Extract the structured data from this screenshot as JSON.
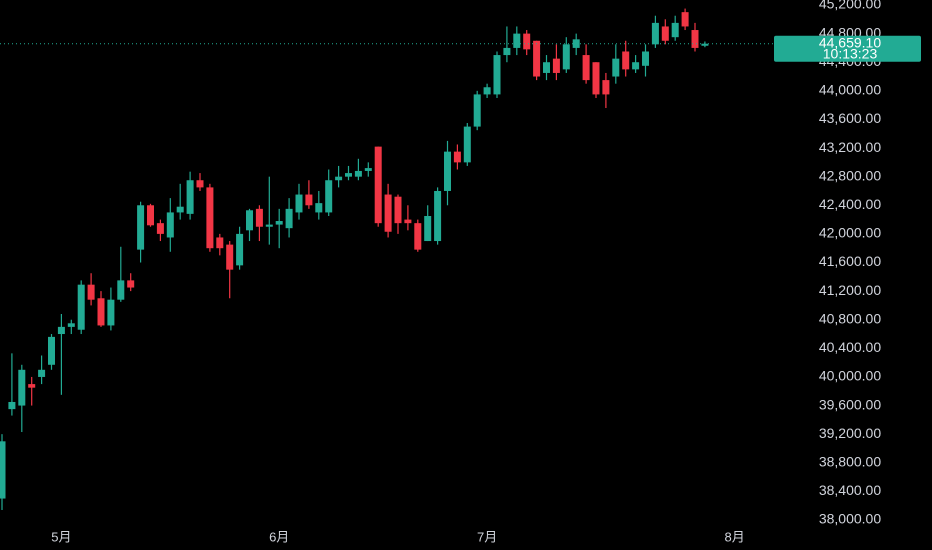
{
  "chart_data": {
    "type": "candlestick",
    "categories": [
      null,
      null,
      null,
      null,
      null,
      null,
      "5月",
      null,
      null,
      null,
      null,
      null,
      null,
      null,
      null,
      null,
      null,
      null,
      null,
      null,
      null,
      null,
      null,
      null,
      null,
      null,
      null,
      null,
      "6月",
      null,
      null,
      null,
      null,
      null,
      null,
      null,
      null,
      null,
      null,
      null,
      null,
      null,
      null,
      null,
      null,
      null,
      null,
      null,
      null,
      "7月",
      null,
      null,
      null,
      null,
      null,
      null,
      null,
      null,
      null,
      null,
      null,
      null,
      null,
      null,
      null,
      null,
      null,
      null,
      null,
      null,
      null,
      null,
      null,
      null,
      "8月"
    ],
    "open": [
      38300,
      39550,
      39600,
      39900,
      40000,
      40170,
      40600,
      40700,
      40660,
      41290,
      41100,
      40720,
      41080,
      41350,
      41780,
      42400,
      42150,
      41950,
      42300,
      42280,
      42750,
      42650,
      41950,
      41850,
      41560,
      42050,
      42350,
      42100,
      42130,
      42080,
      42300,
      42550,
      42300,
      42300,
      42750,
      42800,
      42800,
      42880,
      43220,
      42550,
      42520,
      42200,
      42150,
      41900,
      41900,
      42600,
      43150,
      43000,
      43500,
      43950,
      43950,
      44500,
      44600,
      44800,
      44700,
      44250,
      44450,
      44300,
      44600,
      44500,
      44400,
      44150,
      44200,
      44550,
      44300,
      44350,
      44650,
      44900,
      44750,
      45100,
      44850,
      44630,
      null,
      null,
      null
    ],
    "high": [
      39200,
      40330,
      40170,
      40000,
      40300,
      40600,
      40880,
      40800,
      41350,
      41450,
      41200,
      41250,
      41820,
      41450,
      42450,
      42420,
      42200,
      42500,
      42700,
      42870,
      42850,
      42700,
      42000,
      41900,
      42100,
      42350,
      42400,
      42800,
      42350,
      42500,
      42700,
      42750,
      42600,
      42900,
      42950,
      42950,
      43050,
      43000,
      43220,
      42700,
      42550,
      42400,
      42200,
      42400,
      42650,
      43300,
      43250,
      43550,
      44000,
      44100,
      44550,
      44900,
      44900,
      44850,
      44700,
      44500,
      44650,
      44750,
      44800,
      44650,
      44400,
      44250,
      44650,
      44700,
      44500,
      44650,
      45050,
      45000,
      45050,
      45150,
      44950,
      44690,
      null,
      null,
      null
    ],
    "low": [
      38140,
      39460,
      39230,
      39600,
      39900,
      40100,
      39750,
      40600,
      40600,
      41000,
      40700,
      40650,
      41050,
      41200,
      41600,
      42100,
      41900,
      41750,
      42200,
      42200,
      42600,
      41750,
      41700,
      41100,
      41500,
      41900,
      41900,
      41850,
      41800,
      41950,
      42200,
      42350,
      42200,
      42250,
      42650,
      42750,
      42750,
      42800,
      42100,
      41950,
      42000,
      42050,
      41750,
      41900,
      41850,
      42400,
      42900,
      42950,
      43450,
      43900,
      43900,
      44400,
      44500,
      44500,
      44150,
      44150,
      44150,
      44250,
      44500,
      44100,
      43900,
      43760,
      44100,
      44200,
      44250,
      44200,
      44600,
      44650,
      44700,
      44850,
      44550,
      44610,
      null,
      null,
      null
    ],
    "close": [
      39100,
      39650,
      40100,
      39850,
      40100,
      40560,
      40700,
      40750,
      41290,
      41080,
      40720,
      41080,
      41350,
      41250,
      42400,
      42120,
      42000,
      42300,
      42380,
      42750,
      42650,
      41800,
      41800,
      41500,
      42000,
      42330,
      42100,
      42130,
      42180,
      42350,
      42550,
      42400,
      42430,
      42750,
      42800,
      42850,
      42880,
      42920,
      42150,
      42030,
      42150,
      42150,
      41780,
      42250,
      42600,
      43150,
      43000,
      43500,
      43950,
      44050,
      44500,
      44600,
      44800,
      44580,
      44200,
      44400,
      44250,
      44650,
      44720,
      44150,
      43950,
      43950,
      44450,
      44300,
      44400,
      44550,
      44950,
      44700,
      44950,
      44900,
      44600,
      44659.1,
      null,
      null,
      null
    ],
    "up_color": "#22ab94",
    "down_color": "#f23645",
    "ylim": [
      38000,
      45200
    ],
    "yticks": [
      {
        "value": 38000,
        "label": "38,000.00"
      },
      {
        "value": 38400,
        "label": "38,400.00"
      },
      {
        "value": 38800,
        "label": "38,800.00"
      },
      {
        "value": 39200,
        "label": "39,200.00"
      },
      {
        "value": 39600,
        "label": "39,600.00"
      },
      {
        "value": 40000,
        "label": "40,000.00"
      },
      {
        "value": 40400,
        "label": "40,400.00"
      },
      {
        "value": 40800,
        "label": "40,800.00"
      },
      {
        "value": 41200,
        "label": "41,200.00"
      },
      {
        "value": 41600,
        "label": "41,600.00"
      },
      {
        "value": 42000,
        "label": "42,000.00"
      },
      {
        "value": 42400,
        "label": "42,400.00"
      },
      {
        "value": 42800,
        "label": "42,800.00"
      },
      {
        "value": 43200,
        "label": "43,200.00"
      },
      {
        "value": 43600,
        "label": "43,600.00"
      },
      {
        "value": 44000,
        "label": "44,000.00"
      },
      {
        "value": 44400,
        "label": "44,400.00"
      },
      {
        "value": 44800,
        "label": "44,800.00"
      },
      {
        "value": 45200,
        "label": "45,200.00"
      }
    ],
    "last_price": {
      "value": 44659.1,
      "label": "44,659.10"
    },
    "countdown": "10:13:23"
  }
}
